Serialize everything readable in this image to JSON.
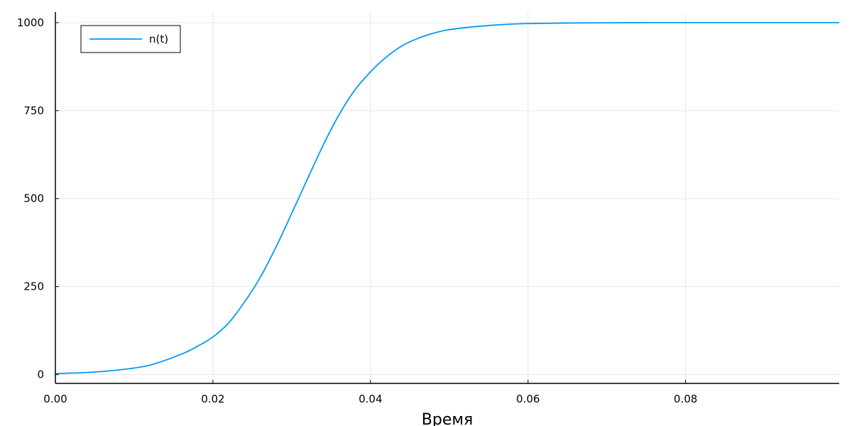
{
  "chart_data": {
    "type": "line",
    "title": "",
    "xlabel": "Время",
    "ylabel": "",
    "xlim": [
      0.0,
      0.0995
    ],
    "ylim": [
      -25,
      1030
    ],
    "xticks": [
      0.0,
      0.02,
      0.04,
      0.06,
      0.08
    ],
    "xtick_labels": [
      "0.00",
      "0.02",
      "0.04",
      "0.06",
      "0.08"
    ],
    "yticks": [
      0,
      250,
      500,
      750,
      1000
    ],
    "ytick_labels": [
      "0",
      "250",
      "500",
      "750",
      "1000"
    ],
    "grid": true,
    "legend": "top-left",
    "series": [
      {
        "name": "n(t)",
        "color": "#009af9",
        "x": [
          0.0,
          0.004,
          0.008,
          0.012,
          0.016,
          0.018,
          0.02,
          0.022,
          0.024,
          0.026,
          0.028,
          0.03,
          0.032,
          0.034,
          0.036,
          0.038,
          0.04,
          0.042,
          0.044,
          0.046,
          0.048,
          0.05,
          0.054,
          0.058,
          0.062,
          0.066,
          0.07,
          0.075,
          0.08,
          0.09,
          0.0995
        ],
        "y": [
          3,
          6,
          13,
          27,
          58,
          80,
          107,
          147,
          206,
          276,
          362,
          458,
          556,
          652,
          738,
          808,
          860,
          902,
          934,
          955,
          970,
          980,
          990,
          996,
          998,
          999,
          999.5,
          1000,
          1000,
          1000,
          1000
        ]
      }
    ]
  }
}
